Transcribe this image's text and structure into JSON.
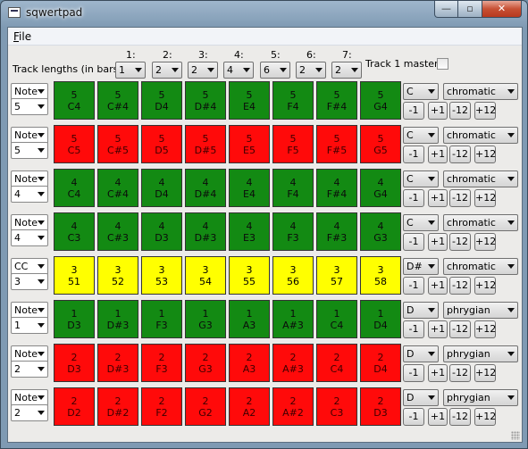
{
  "window": {
    "title": "sqwertpad",
    "min_glyph": "—",
    "max_glyph": "▫",
    "close_glyph": "✕"
  },
  "menu": {
    "file_mnemonic": "F",
    "file_rest": "ile"
  },
  "header": {
    "track_lengths_label": "Track lengths (in bars)",
    "tracks": [
      {
        "label": "1:",
        "value": "1"
      },
      {
        "label": "2:",
        "value": "2"
      },
      {
        "label": "3:",
        "value": "2"
      },
      {
        "label": "4:",
        "value": "4"
      },
      {
        "label": "5:",
        "value": "6"
      },
      {
        "label": "6:",
        "value": "2"
      },
      {
        "label": "7:",
        "value": "2"
      }
    ],
    "master_label": "Track 1 master",
    "master_checked": false
  },
  "colors": {
    "green": "#138a13",
    "red": "#ff0a0a",
    "yellow": "#ffff00"
  },
  "rows": [
    {
      "type": "Note",
      "num": "5",
      "color": "green",
      "key": "C",
      "scale": "chromatic",
      "cells": [
        [
          "5",
          "C4"
        ],
        [
          "5",
          "C#4"
        ],
        [
          "5",
          "D4"
        ],
        [
          "5",
          "D#4"
        ],
        [
          "5",
          "E4"
        ],
        [
          "5",
          "F4"
        ],
        [
          "5",
          "F#4"
        ],
        [
          "5",
          "G4"
        ]
      ]
    },
    {
      "type": "Note",
      "num": "5",
      "color": "red",
      "key": "C",
      "scale": "chromatic",
      "cells": [
        [
          "5",
          "C5"
        ],
        [
          "5",
          "C#5"
        ],
        [
          "5",
          "D5"
        ],
        [
          "5",
          "D#5"
        ],
        [
          "5",
          "E5"
        ],
        [
          "5",
          "F5"
        ],
        [
          "5",
          "F#5"
        ],
        [
          "5",
          "G5"
        ]
      ]
    },
    {
      "type": "Note",
      "num": "4",
      "color": "green",
      "key": "C",
      "scale": "chromatic",
      "cells": [
        [
          "4",
          "C4"
        ],
        [
          "4",
          "C#4"
        ],
        [
          "4",
          "D4"
        ],
        [
          "4",
          "D#4"
        ],
        [
          "4",
          "E4"
        ],
        [
          "4",
          "F4"
        ],
        [
          "4",
          "F#4"
        ],
        [
          "4",
          "G4"
        ]
      ]
    },
    {
      "type": "Note",
      "num": "4",
      "color": "green",
      "key": "C",
      "scale": "chromatic",
      "cells": [
        [
          "4",
          "C3"
        ],
        [
          "4",
          "C#3"
        ],
        [
          "4",
          "D3"
        ],
        [
          "4",
          "D#3"
        ],
        [
          "4",
          "E3"
        ],
        [
          "4",
          "F3"
        ],
        [
          "4",
          "F#3"
        ],
        [
          "4",
          "G3"
        ]
      ]
    },
    {
      "type": "CC",
      "num": "3",
      "color": "yellow",
      "key": "D#",
      "scale": "chromatic",
      "cells": [
        [
          "3",
          "51"
        ],
        [
          "3",
          "52"
        ],
        [
          "3",
          "53"
        ],
        [
          "3",
          "54"
        ],
        [
          "3",
          "55"
        ],
        [
          "3",
          "56"
        ],
        [
          "3",
          "57"
        ],
        [
          "3",
          "58"
        ]
      ]
    },
    {
      "type": "Note",
      "num": "1",
      "color": "green",
      "key": "D",
      "scale": "phrygian",
      "cells": [
        [
          "1",
          "D3"
        ],
        [
          "1",
          "D#3"
        ],
        [
          "1",
          "F3"
        ],
        [
          "1",
          "G3"
        ],
        [
          "1",
          "A3"
        ],
        [
          "1",
          "A#3"
        ],
        [
          "1",
          "C4"
        ],
        [
          "1",
          "D4"
        ]
      ]
    },
    {
      "type": "Note",
      "num": "2",
      "color": "red",
      "key": "D",
      "scale": "phrygian",
      "cells": [
        [
          "2",
          "D3"
        ],
        [
          "2",
          "D#3"
        ],
        [
          "2",
          "F3"
        ],
        [
          "2",
          "G3"
        ],
        [
          "2",
          "A3"
        ],
        [
          "2",
          "A#3"
        ],
        [
          "2",
          "C4"
        ],
        [
          "2",
          "D4"
        ]
      ]
    },
    {
      "type": "Note",
      "num": "2",
      "color": "red",
      "key": "D",
      "scale": "phrygian",
      "cells": [
        [
          "2",
          "D2"
        ],
        [
          "2",
          "D#2"
        ],
        [
          "2",
          "F2"
        ],
        [
          "2",
          "G2"
        ],
        [
          "2",
          "A2"
        ],
        [
          "2",
          "A#2"
        ],
        [
          "2",
          "C3"
        ],
        [
          "2",
          "D3"
        ]
      ]
    }
  ],
  "transpose_buttons": [
    "-1",
    "+1",
    "-12",
    "+12"
  ]
}
